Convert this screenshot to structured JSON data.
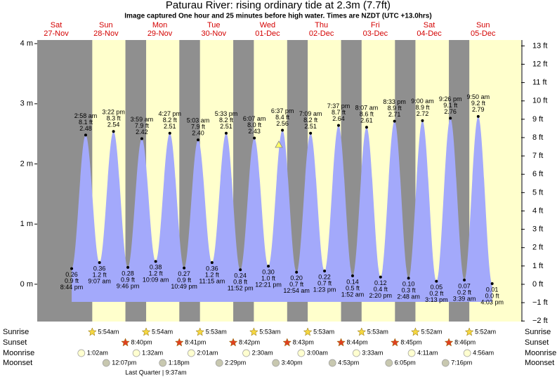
{
  "chart_data": {
    "type": "area",
    "title": "Paturau River: rising  ordinary tide at 2.3m (7.7ft)",
    "subtitle": "Image captured One hour and 25 minutes before high water. Times are NZDT (UTC +13.0hrs)",
    "ylim": [
      -0.62,
      4.06
    ],
    "yticks": [
      {
        "value": 0,
        "label": "0 m"
      },
      {
        "value": 1,
        "label": "1 m"
      },
      {
        "value": 2,
        "label": "2 m"
      },
      {
        "value": 3,
        "label": "3 m"
      },
      {
        "value": 4,
        "label": "4 m"
      }
    ],
    "y2lim": [
      -2.03,
      13.32
    ],
    "y2ticks": [
      {
        "value": -2,
        "label": "−2 ft"
      },
      {
        "value": -1,
        "label": "−1 ft"
      },
      {
        "value": 0,
        "label": "0 ft"
      },
      {
        "value": 1,
        "label": "1 ft"
      },
      {
        "value": 2,
        "label": "2 ft"
      },
      {
        "value": 3,
        "label": "3 ft"
      },
      {
        "value": 4,
        "label": "4 ft"
      },
      {
        "value": 5,
        "label": "5 ft"
      },
      {
        "value": 6,
        "label": "6 ft"
      },
      {
        "value": 7,
        "label": "7 ft"
      },
      {
        "value": 8,
        "label": "8 ft"
      },
      {
        "value": 9,
        "label": "9 ft"
      },
      {
        "value": 10,
        "label": "10 ft"
      },
      {
        "value": 11,
        "label": "11 ft"
      },
      {
        "value": 12,
        "label": "12 ft"
      },
      {
        "value": 13,
        "label": "13 ft"
      }
    ],
    "color": "#a3a9fb",
    "night_color": "#8f8f8f",
    "day_color": "#ffffcc",
    "row_labels": [
      "Sunrise",
      "Sunset",
      "Moonrise",
      "Moonset"
    ],
    "moon_phase": "Last Quarter | 9:37am",
    "days": [
      {
        "weekday": "Sat",
        "date": "27-Nov",
        "sunrise": null,
        "sunset": null,
        "moonrise": null,
        "moonset": null,
        "tides": [
          {
            "time": "8:44 pm",
            "ft": "0.9 ft",
            "height": 0.26,
            "height_label": "0.26"
          }
        ]
      },
      {
        "weekday": "Sun",
        "date": "28-Nov",
        "sunrise": "5:54am",
        "sunset": "8:40pm",
        "moonrise": "1:02am",
        "moonset": "12:07pm",
        "tides": [
          {
            "time": "2:58 am",
            "ft": "8.1 ft",
            "height": 2.48,
            "height_label": "2.48"
          },
          {
            "time": "9:07 am",
            "ft": "1.2 ft",
            "height": 0.36,
            "height_label": "0.36"
          },
          {
            "time": "3:22 pm",
            "ft": "8.3 ft",
            "height": 2.54,
            "height_label": "2.54"
          },
          {
            "time": "9:46 pm",
            "ft": "0.9 ft",
            "height": 0.28,
            "height_label": "0.28"
          }
        ]
      },
      {
        "weekday": "Mon",
        "date": "29-Nov",
        "sunrise": "5:54am",
        "sunset": "8:41pm",
        "moonrise": "1:32am",
        "moonset": "1:18pm",
        "tides": [
          {
            "time": "3:59 am",
            "ft": "7.9 ft",
            "height": 2.42,
            "height_label": "2.42"
          },
          {
            "time": "10:09 am",
            "ft": "1.2 ft",
            "height": 0.38,
            "height_label": "0.38"
          },
          {
            "time": "4:27 pm",
            "ft": "8.2 ft",
            "height": 2.51,
            "height_label": "2.51"
          },
          {
            "time": "10:49 pm",
            "ft": "0.9 ft",
            "height": 0.27,
            "height_label": "0.27"
          }
        ]
      },
      {
        "weekday": "Tue",
        "date": "30-Nov",
        "sunrise": "5:53am",
        "sunset": "8:42pm",
        "moonrise": "2:01am",
        "moonset": "2:29pm",
        "tides": [
          {
            "time": "5:03 am",
            "ft": "7.9 ft",
            "height": 2.4,
            "height_label": "2.40"
          },
          {
            "time": "11:15 am",
            "ft": "1.2 ft",
            "height": 0.36,
            "height_label": "0.36"
          },
          {
            "time": "5:33 pm",
            "ft": "8.2 ft",
            "height": 2.51,
            "height_label": "2.51"
          },
          {
            "time": "11:52 pm",
            "ft": "0.8 ft",
            "height": 0.24,
            "height_label": "0.24"
          }
        ]
      },
      {
        "weekday": "Wed",
        "date": "01-Dec",
        "sunrise": "5:53am",
        "sunset": "8:43pm",
        "moonrise": "2:30am",
        "moonset": "3:40pm",
        "tides": [
          {
            "time": "6:07 am",
            "ft": "8.0 ft",
            "height": 2.43,
            "height_label": "2.43"
          },
          {
            "time": "12:21 pm",
            "ft": "1.0 ft",
            "height": 0.3,
            "height_label": "0.30"
          },
          {
            "time": "6:37 pm",
            "ft": "8.4 ft",
            "height": 2.56,
            "height_label": "2.56"
          }
        ]
      },
      {
        "weekday": "Thu",
        "date": "02-Dec",
        "sunrise": "5:53am",
        "sunset": "8:44pm",
        "moonrise": "3:00am",
        "moonset": "4:53pm",
        "tides": [
          {
            "time": "12:54 am",
            "ft": "0.7 ft",
            "height": 0.2,
            "height_label": "0.20"
          },
          {
            "time": "7:09 am",
            "ft": "8.2 ft",
            "height": 2.51,
            "height_label": "2.51"
          },
          {
            "time": "1:23 pm",
            "ft": "0.7 ft",
            "height": 0.22,
            "height_label": "0.22"
          },
          {
            "time": "7:37 pm",
            "ft": "8.7 ft",
            "height": 2.64,
            "height_label": "2.64"
          }
        ]
      },
      {
        "weekday": "Fri",
        "date": "03-Dec",
        "sunrise": "5:53am",
        "sunset": "8:45pm",
        "moonrise": "3:33am",
        "moonset": "6:05pm",
        "tides": [
          {
            "time": "1:52 am",
            "ft": "0.5 ft",
            "height": 0.14,
            "height_label": "0.14"
          },
          {
            "time": "8:07 am",
            "ft": "8.6 ft",
            "height": 2.61,
            "height_label": "2.61"
          },
          {
            "time": "2:20 pm",
            "ft": "0.4 ft",
            "height": 0.12,
            "height_label": "0.12"
          },
          {
            "time": "8:33 pm",
            "ft": "8.9 ft",
            "height": 2.71,
            "height_label": "2.71"
          }
        ]
      },
      {
        "weekday": "Sat",
        "date": "04-Dec",
        "sunrise": "5:52am",
        "sunset": "8:46pm",
        "moonrise": "4:11am",
        "moonset": "7:16pm",
        "tides": [
          {
            "time": "2:48 am",
            "ft": "0.3 ft",
            "height": 0.1,
            "height_label": "0.10"
          },
          {
            "time": "9:00 am",
            "ft": "8.9 ft",
            "height": 2.72,
            "height_label": "2.72"
          },
          {
            "time": "3:13 pm",
            "ft": "0.2 ft",
            "height": 0.05,
            "height_label": "0.05"
          },
          {
            "time": "9:26 pm",
            "ft": "9.1 ft",
            "height": 2.76,
            "height_label": "2.76"
          }
        ]
      },
      {
        "weekday": "Sun",
        "date": "05-Dec",
        "sunrise": "5:52am",
        "sunset": null,
        "moonrise": "4:56am",
        "moonset": null,
        "tides": [
          {
            "time": "3:39 am",
            "ft": "0.2 ft",
            "height": 0.07,
            "height_label": "0.07"
          },
          {
            "time": "9:50 am",
            "ft": "9.2 ft",
            "height": 2.79,
            "height_label": "2.79"
          },
          {
            "time": "4:03 pm",
            "ft": "0.0 ft",
            "height": 0.01,
            "height_label": "0.01"
          }
        ]
      }
    ]
  }
}
